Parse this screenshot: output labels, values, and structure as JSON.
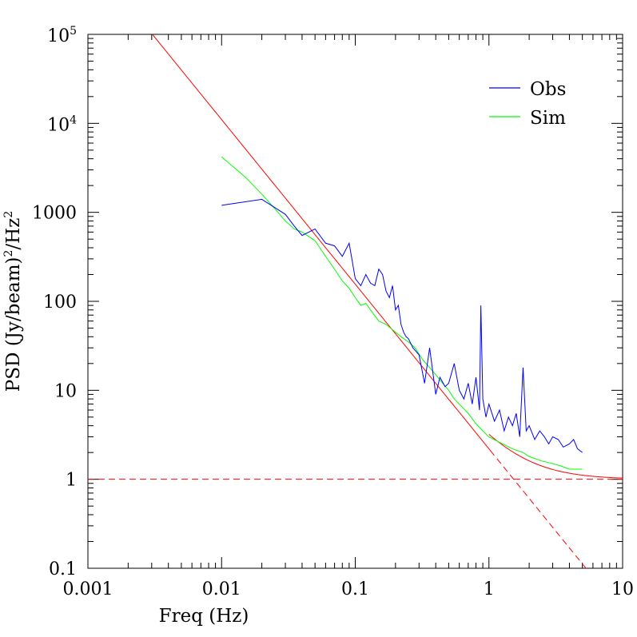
{
  "chart_data": {
    "type": "line",
    "xlabel": "Freq (Hz)",
    "ylabel_parts": [
      "PSD (Jy/beam)",
      "2",
      "/Hz",
      "2"
    ],
    "x_scale": "log",
    "y_scale": "log",
    "xlim": [
      0.001,
      10
    ],
    "ylim": [
      0.1,
      100000
    ],
    "x_ticks": [
      {
        "value": 0.001,
        "label": "0.001"
      },
      {
        "value": 0.01,
        "label": "0.01"
      },
      {
        "value": 0.1,
        "label": "0.1"
      },
      {
        "value": 1,
        "label": "1"
      },
      {
        "value": 10,
        "label": "10"
      }
    ],
    "y_ticks": [
      {
        "value": 0.1,
        "label": "0.1"
      },
      {
        "value": 1,
        "label": "1"
      },
      {
        "value": 10,
        "label": "10"
      },
      {
        "value": 100,
        "label": "100"
      },
      {
        "value": 1000,
        "label": "1000"
      },
      {
        "value": 10000,
        "base": "10",
        "exp": "4"
      },
      {
        "value": 100000,
        "base": "10",
        "exp": "5"
      }
    ],
    "grid": false,
    "legend_position": "top-right",
    "legend": [
      {
        "label": "Obs",
        "color": "#0000ff"
      },
      {
        "label": "Sim",
        "color": "#00ff00"
      }
    ],
    "series": [
      {
        "name": "Obs",
        "color": "#0000ff",
        "x": [
          0.01,
          0.02,
          0.03,
          0.035,
          0.04,
          0.05,
          0.06,
          0.07,
          0.08,
          0.09,
          0.1,
          0.11,
          0.12,
          0.13,
          0.14,
          0.15,
          0.16,
          0.17,
          0.18,
          0.19,
          0.2,
          0.21,
          0.22,
          0.23,
          0.24,
          0.25,
          0.27,
          0.3,
          0.33,
          0.36,
          0.4,
          0.43,
          0.47,
          0.5,
          0.55,
          0.6,
          0.65,
          0.7,
          0.75,
          0.8,
          0.85,
          0.87,
          0.9,
          0.95,
          1.0,
          1.1,
          1.2,
          1.3,
          1.4,
          1.5,
          1.6,
          1.7,
          1.8,
          1.9,
          2.0,
          2.2,
          2.4,
          2.6,
          2.8,
          3.0,
          3.3,
          3.6,
          4.0,
          4.3,
          4.6,
          5.0
        ],
        "y": [
          1200,
          1400,
          950,
          700,
          550,
          650,
          450,
          420,
          320,
          450,
          180,
          150,
          200,
          160,
          150,
          230,
          200,
          130,
          110,
          150,
          80,
          90,
          55,
          45,
          40,
          38,
          30,
          25,
          12,
          30,
          9,
          14,
          11,
          12,
          20,
          10,
          8,
          12,
          7,
          14,
          6,
          90,
          8,
          5,
          7,
          4.5,
          6,
          3.5,
          5,
          4,
          5.5,
          3,
          18,
          3.5,
          4,
          2.8,
          3.5,
          3,
          2.5,
          3,
          2.8,
          2.3,
          2.5,
          2.8,
          2.2,
          2.0
        ]
      },
      {
        "name": "Sim",
        "color": "#00ff00",
        "x": [
          0.01,
          0.015,
          0.02,
          0.025,
          0.03,
          0.035,
          0.04,
          0.05,
          0.06,
          0.07,
          0.08,
          0.09,
          0.1,
          0.11,
          0.12,
          0.13,
          0.15,
          0.17,
          0.2,
          0.22,
          0.25,
          0.28,
          0.32,
          0.36,
          0.4,
          0.45,
          0.5,
          0.55,
          0.6,
          0.7,
          0.8,
          0.9,
          1.0,
          1.2,
          1.5,
          1.8,
          2.0,
          2.5,
          3.0,
          3.5,
          4.0,
          4.5,
          5.0
        ],
        "y": [
          4200,
          2500,
          1600,
          1100,
          800,
          650,
          600,
          480,
          320,
          230,
          170,
          140,
          110,
          90,
          95,
          80,
          60,
          55,
          45,
          40,
          35,
          30,
          22,
          18,
          15,
          12,
          10,
          8,
          7,
          5.5,
          4.2,
          3.5,
          3.0,
          2.6,
          2.2,
          2.0,
          1.8,
          1.6,
          1.5,
          1.4,
          1.3,
          1.3,
          1.3
        ]
      }
    ],
    "model_lines": [
      {
        "kind": "power_law",
        "amplitude": 2.2,
        "exponent": -1.85,
        "color": "#ff0000",
        "style": "solid_then_dashed",
        "dash_after_x": 1.1
      },
      {
        "kind": "power_law_plus_const",
        "amplitude": 2.2,
        "exponent": -1.85,
        "constant": 1.0,
        "color": "#ff0000",
        "style": "solid",
        "from_x": 1.0
      },
      {
        "kind": "constant",
        "value": 1.0,
        "color": "#ff0000",
        "style": "dashed"
      }
    ]
  }
}
